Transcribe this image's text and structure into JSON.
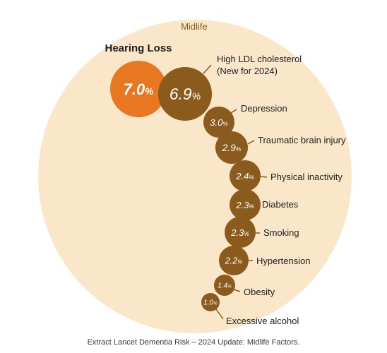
{
  "section_label": "Midlife",
  "highlight_label": "Hearing Loss",
  "caption": "Extract Lancet Dementia Risk – 2024 Update: Midlife Factors.",
  "colors": {
    "background_circle": "#fae6c8",
    "section_label": "#8a5a1a",
    "highlight_bubble": "#e87722",
    "factor_bubble": "#8b5a1d",
    "leader_line": "#8b5a1d",
    "bubble_text": "#ffffff",
    "label_text": "#1f1f1f"
  },
  "chart_data": {
    "type": "bubble",
    "title": "",
    "series": [
      {
        "name": "",
        "factors": [
          {
            "label": "Hearing Loss",
            "value": 7.0,
            "display": "7.0",
            "highlight": true
          },
          {
            "label": "High LDL cholesterol",
            "note": "(New for 2024)",
            "value": 6.9,
            "display": "6.9"
          },
          {
            "label": "Depression",
            "value": 3.0,
            "display": "3.0"
          },
          {
            "label": "Traumatic brain injury",
            "value": 2.9,
            "display": "2.9"
          },
          {
            "label": "Physical inactivity",
            "value": 2.4,
            "display": "2.4"
          },
          {
            "label": "Diabetes",
            "value": 2.3,
            "display": "2.3"
          },
          {
            "label": "Smoking",
            "value": 2.3,
            "display": "2.3"
          },
          {
            "label": "Hypertension",
            "value": 2.2,
            "display": "2.2"
          },
          {
            "label": "Obesity",
            "value": 1.4,
            "display": "1.4"
          },
          {
            "label": "Excessive alcohol",
            "value": 1.0,
            "display": "1.0"
          }
        ]
      }
    ],
    "value_unit": "%"
  }
}
